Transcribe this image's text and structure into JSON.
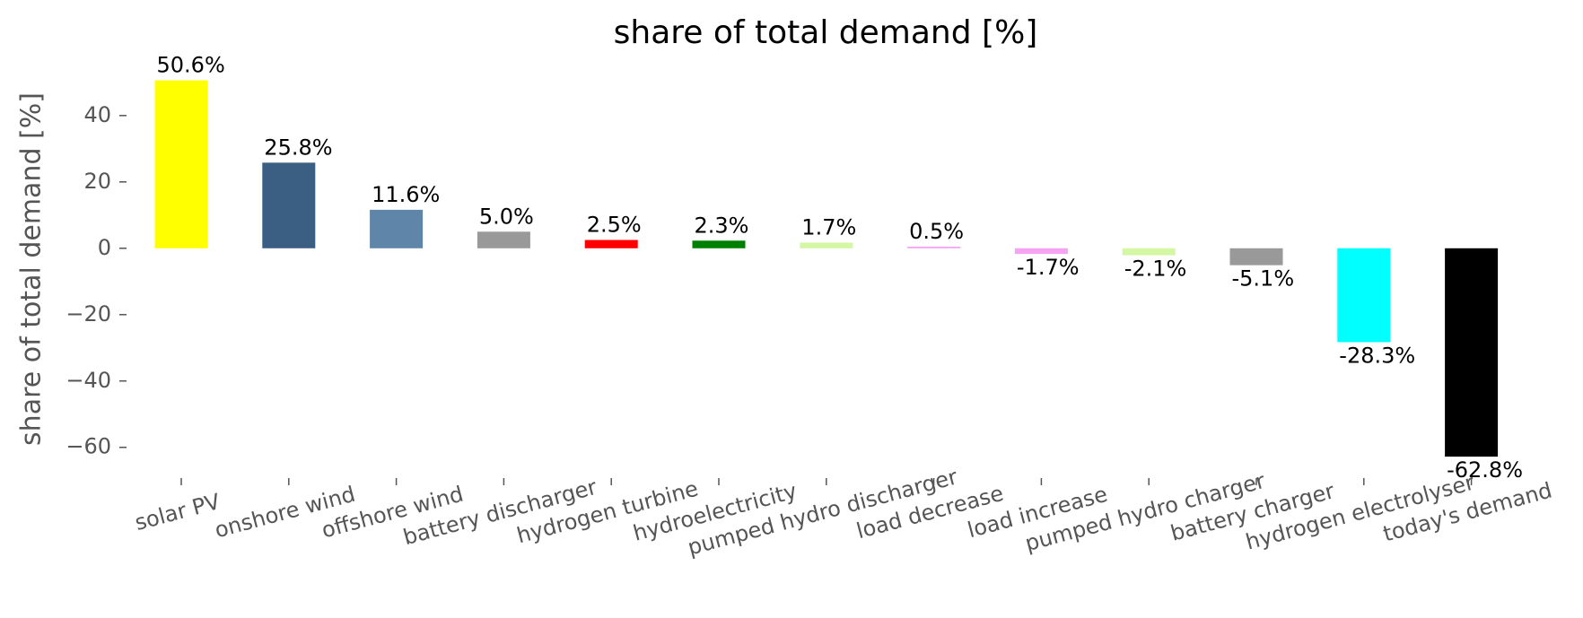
{
  "chart_data": {
    "type": "bar",
    "title": "share of total demand [%]",
    "y_label": "share of total demand [%]",
    "categories": [
      "solar PV",
      "onshore wind",
      "offshore wind",
      "battery discharger",
      "hydrogen turbine",
      "hydroelectricity",
      "pumped hydro discharger",
      "load decrease",
      "load increase",
      "pumped hydro charger",
      "battery charger",
      "hydrogen electrolyser",
      "today's demand"
    ],
    "values": [
      50.6,
      25.8,
      11.6,
      5.0,
      2.5,
      2.3,
      1.7,
      0.5,
      -1.7,
      -2.1,
      -5.1,
      -28.3,
      -62.8
    ],
    "value_labels": [
      "50.6%",
      "25.8%",
      "11.6%",
      "5.0%",
      "2.5%",
      "2.3%",
      "1.7%",
      "0.5%",
      "-1.7%",
      "-2.1%",
      "-5.1%",
      "-28.3%",
      "-62.8%"
    ],
    "colors": [
      "#ffff00",
      "#3a5f82",
      "#5f85a8",
      "#999999",
      "#ff0000",
      "#008000",
      "#d4f7a4",
      "#f5a3f2",
      "#f5a3f2",
      "#d4f7a4",
      "#999999",
      "#00ffff",
      "#000000"
    ],
    "ylim": [
      -69.8,
      53.2
    ],
    "yticks": [
      {
        "value": -60,
        "label": "−60"
      },
      {
        "value": -40,
        "label": "−40"
      },
      {
        "value": -20,
        "label": "−20"
      },
      0,
      20,
      40
    ],
    "grid": false
  }
}
